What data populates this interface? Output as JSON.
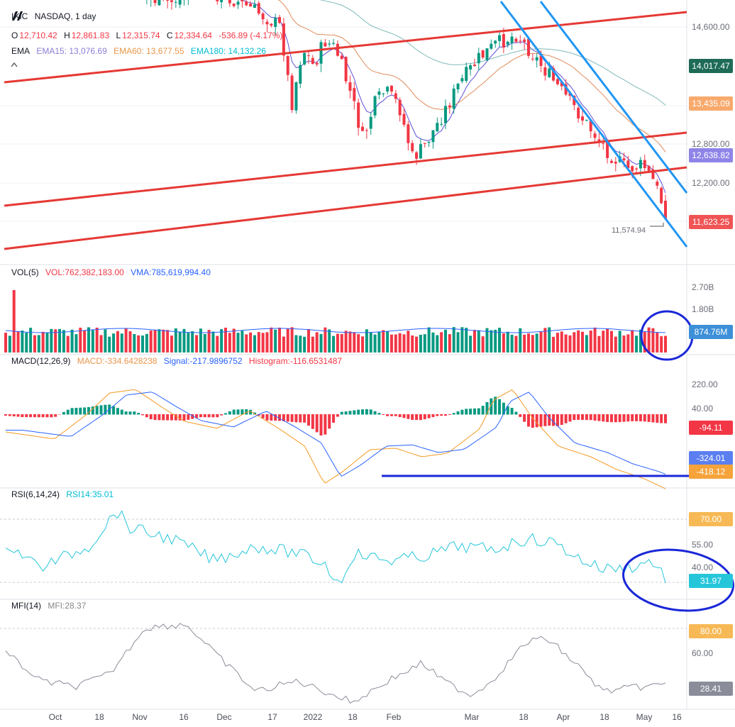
{
  "header": {
    "symbol": "IXIC",
    "exchange_interval": "NASDAQ, 1 day",
    "ohlc": {
      "o_label": "O",
      "o": "12,710.42",
      "h_label": "H",
      "h": "12,861.83",
      "l_label": "L",
      "l": "12,315.74",
      "c_label": "C",
      "c": "12,334.64",
      "change": "-536.89 (-4.17%)"
    },
    "ema": {
      "label": "EMA",
      "ema15": "EMA15: 13,076.69",
      "ema60": "EMA60: 13,677.55",
      "ema180": "EMA180: 14,132.26"
    }
  },
  "panes": {
    "volume": {
      "label": "VOL(5)",
      "vol": "VOL:762,382,183.00",
      "vma": "VMA:785,619,994.40"
    },
    "macd": {
      "label": "MACD(12,26,9)",
      "macd": "MACD:-334.6428238",
      "signal": "Signal:-217.9896752",
      "histogram": "Histogram:-116.6531487"
    },
    "rsi": {
      "label": "RSI(6,14,24)",
      "rsi14": "RSI14:35.01"
    },
    "mfi": {
      "label": "MFI(14)",
      "mfi": "MFI:28.37"
    }
  },
  "price_axis": {
    "ticks": [
      "14,600.00",
      "12,800.00",
      "12,200.00"
    ],
    "badges": [
      {
        "text": "14,017.47",
        "color": "#1e6b57"
      },
      {
        "text": "13,435.09",
        "color": "#f8a96c"
      },
      {
        "text": "12,638.82",
        "color": "#8e84e8"
      },
      {
        "text": "11,623.25",
        "color": "#f05454"
      }
    ],
    "low_marker": "11,574.94"
  },
  "volume_axis": {
    "ticks": [
      "2.70B",
      "1.80B"
    ],
    "badge": {
      "text": "874.76M",
      "color": "#3d8fd8"
    }
  },
  "macd_axis": {
    "ticks": [
      "220.00",
      "40.00"
    ],
    "badges": [
      {
        "text": "-94.11",
        "color": "#f23645"
      },
      {
        "text": "-324.01",
        "color": "#5b7ff0"
      },
      {
        "text": "-418.12",
        "color": "#f5a33a"
      }
    ]
  },
  "rsi_axis": {
    "ticks": [
      "55.00",
      "40.00"
    ],
    "badges": [
      {
        "text": "70.00",
        "color": "#f7b955"
      },
      {
        "text": "31.97",
        "color": "#26c6da"
      }
    ]
  },
  "mfi_axis": {
    "ticks": [
      "60.00"
    ],
    "badges": [
      {
        "text": "80.00",
        "color": "#f7b955"
      },
      {
        "text": "28.41",
        "color": "#8a8d99"
      }
    ]
  },
  "x_axis": {
    "labels": [
      "Oct",
      "18",
      "Nov",
      "16",
      "Dec",
      "17",
      "2022",
      "18",
      "Feb",
      "Mar",
      "18",
      "Apr",
      "18",
      "May",
      "16"
    ]
  },
  "colors": {
    "up": "#089981",
    "down": "#f23645",
    "trend_red": "#e53935",
    "trend_blue": "#2196f3",
    "annotation": "#1a27d8"
  },
  "chart_data": {
    "type": "candlestick",
    "symbol": "IXIC",
    "interval": "1 day",
    "last_bar": {
      "open": 12710.42,
      "high": 12861.83,
      "low": 12315.74,
      "close": 12334.64,
      "change": -536.89,
      "change_pct": -4.17
    },
    "ema": {
      "ema15": 13076.69,
      "ema60": 13677.55,
      "ema180": 14132.26
    },
    "price_levels": [
      14600,
      12800,
      12200
    ],
    "volume": {
      "vol5": 762382183.0,
      "vma": 785619994.4
    },
    "macd": {
      "macd": -334.6428238,
      "signal": -217.9896752,
      "histogram": -116.6531487
    },
    "rsi14": 35.01,
    "rsi_levels": [
      70,
      55,
      40
    ],
    "mfi14": 28.37,
    "mfi_levels": [
      80,
      60
    ]
  }
}
